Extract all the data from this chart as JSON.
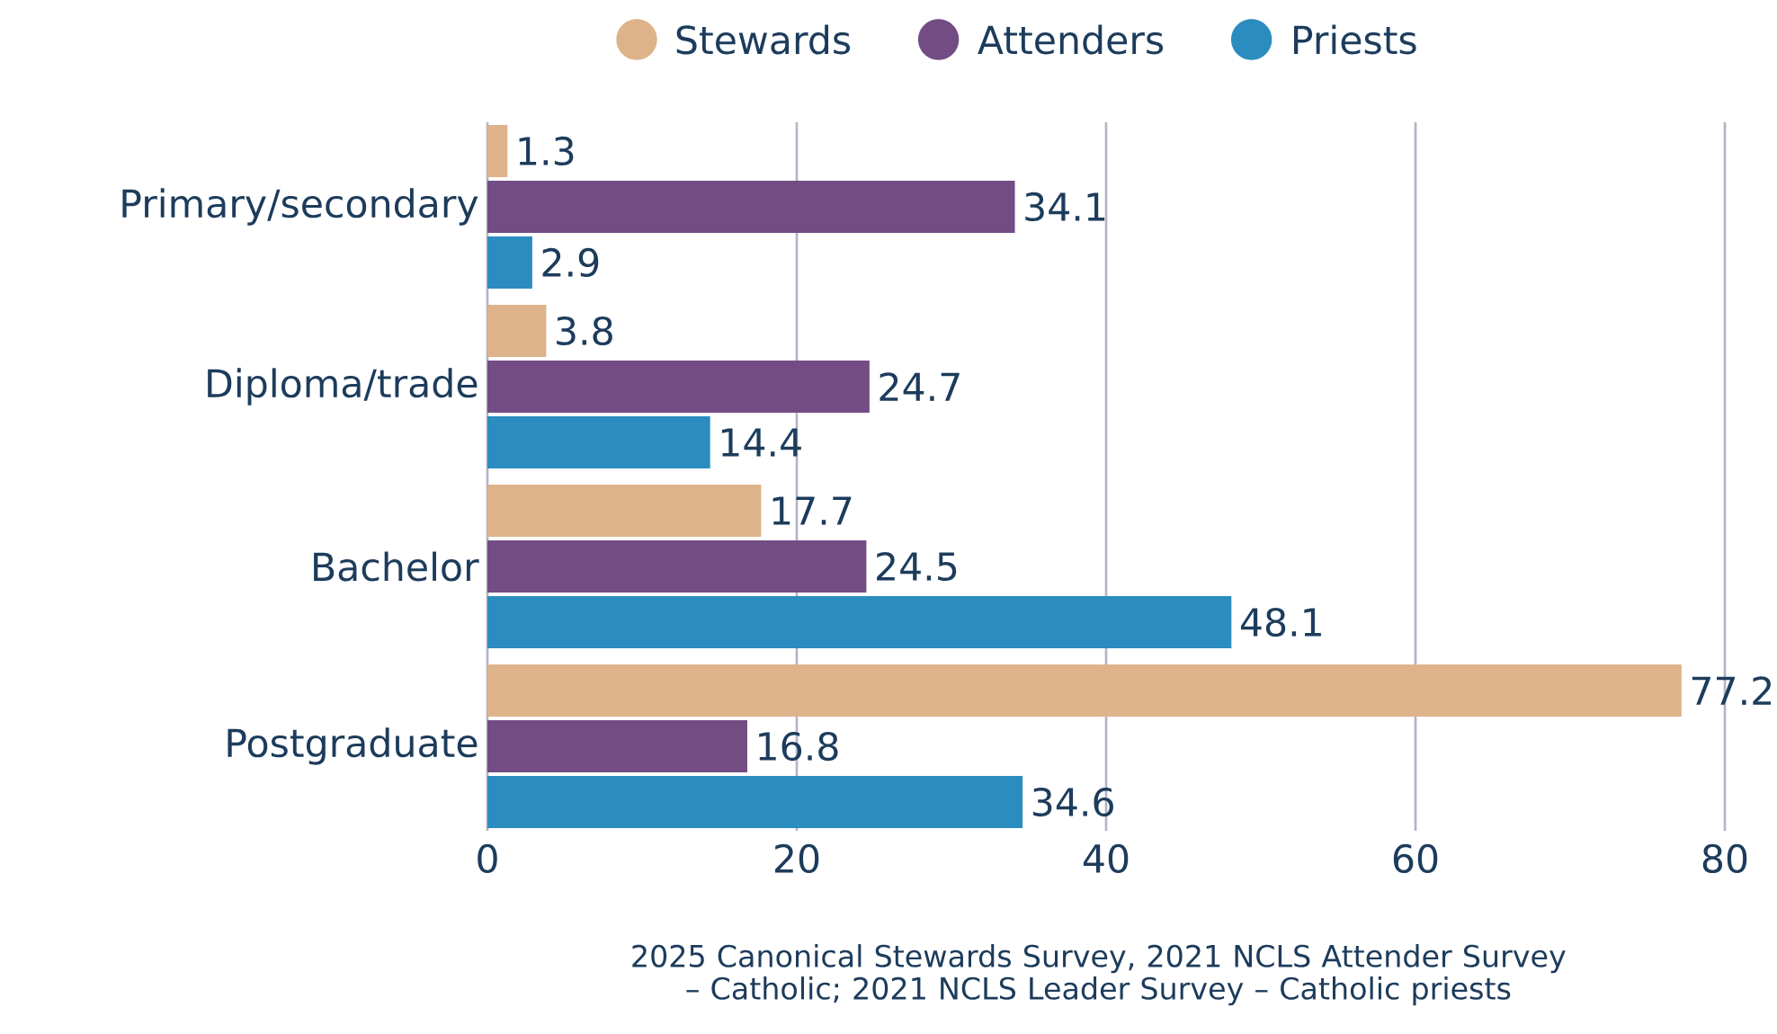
{
  "chart_data": {
    "type": "bar",
    "orientation": "horizontal",
    "categories": [
      "Primary/secondary",
      "Diploma/trade",
      "Bachelor",
      "Postgraduate"
    ],
    "series": [
      {
        "name": "Stewards",
        "color": "#deb38a",
        "values": [
          1.3,
          3.8,
          17.7,
          77.2
        ]
      },
      {
        "name": "Attenders",
        "color": "#734c84",
        "values": [
          34.1,
          24.7,
          24.5,
          16.8
        ]
      },
      {
        "name": "Priests",
        "color": "#2b8cbf",
        "values": [
          2.9,
          14.4,
          48.1,
          34.6
        ]
      }
    ],
    "xlim": [
      0,
      80
    ],
    "xticks": [
      0,
      20,
      40,
      60,
      80
    ],
    "grid": "x",
    "legend": "top",
    "data_labels": true,
    "annotations": [
      "2025 Canonical Stewards Survey, 2021 NCLS Attender Survey – Catholic; 2021 NCLS Leader Survey – Catholic priests"
    ]
  }
}
